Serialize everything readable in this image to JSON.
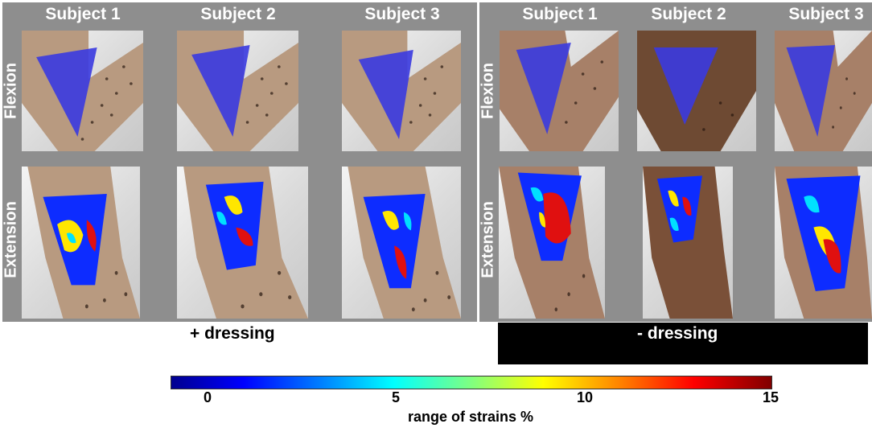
{
  "panels": {
    "with_dressing": {
      "caption": "+ dressing",
      "subjects": [
        "Subject 1",
        "Subject 2",
        "Subject 3"
      ],
      "rows": [
        "Flexion",
        "Extension"
      ]
    },
    "without_dressing": {
      "caption": "- dressing",
      "subjects": [
        "Subject 1",
        "Subject 2",
        "Subject 3"
      ],
      "rows": [
        "Flexion",
        "Extension"
      ]
    }
  },
  "colorbar": {
    "title": "range of strains %",
    "ticks": [
      "0",
      "5",
      "10",
      "15"
    ],
    "min": 0,
    "max": 15,
    "colormap": [
      "#00008f",
      "#0000ff",
      "#0080ff",
      "#00ffff",
      "#80ff80",
      "#ffff00",
      "#ff8000",
      "#ff0000",
      "#800000"
    ]
  },
  "colors": {
    "skin_light": "#b89a80",
    "skin_dark": "#6e4a33",
    "flexion_overlay": "#3a3ae0",
    "panel_bg": "#8e8e8e"
  }
}
